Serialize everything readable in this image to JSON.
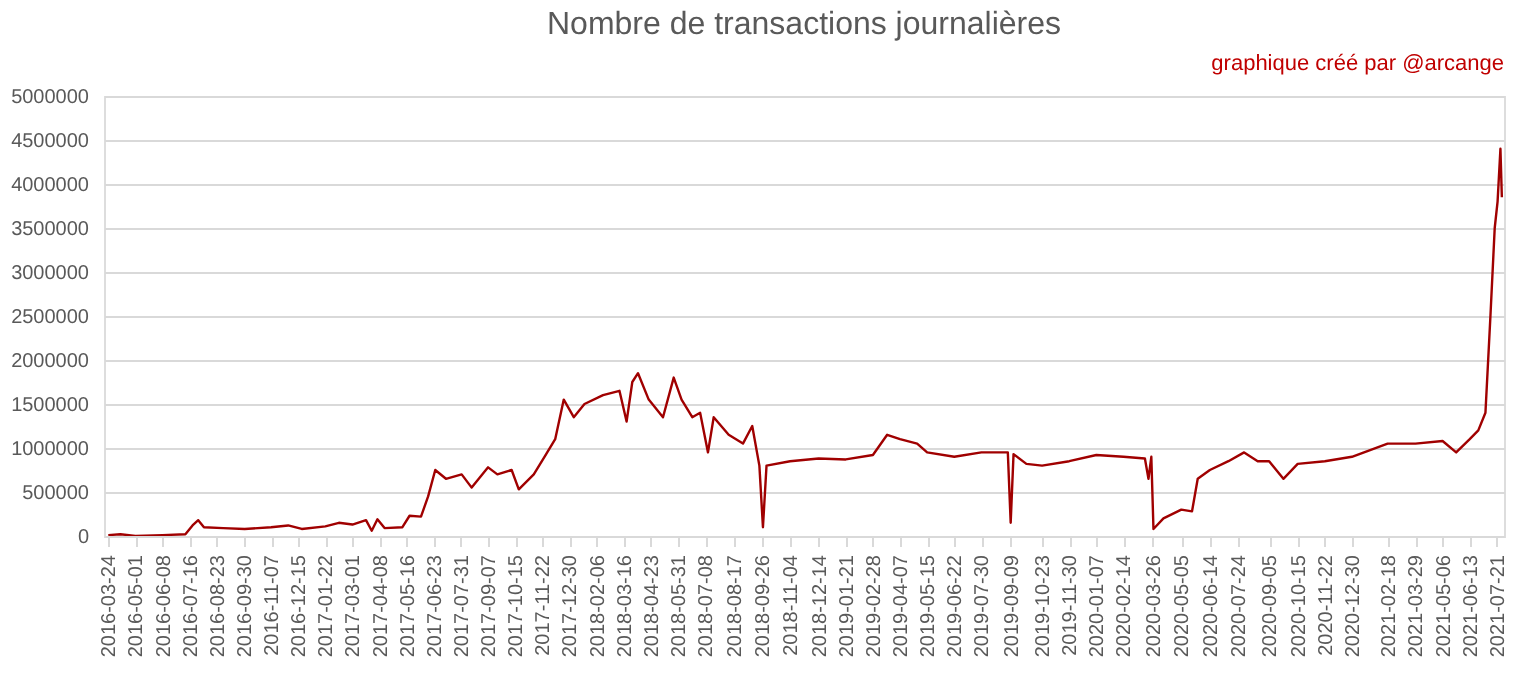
{
  "chart_data": {
    "type": "line",
    "title": "Nombre de transactions journalières",
    "annotations": [
      "graphique créé par @arcange"
    ],
    "x": [
      "2016-03-24",
      "2016-04-10",
      "2016-05-01",
      "2016-06-08",
      "2016-07-10",
      "2016-07-20",
      "2016-07-28",
      "2016-08-05",
      "2016-09-01",
      "2016-10-01",
      "2016-11-07",
      "2016-12-01",
      "2016-12-20",
      "2017-01-22",
      "2017-02-10",
      "2017-03-01",
      "2017-03-20",
      "2017-03-28",
      "2017-04-05",
      "2017-04-15",
      "2017-05-10",
      "2017-05-20",
      "2017-06-05",
      "2017-06-15",
      "2017-06-25",
      "2017-07-10",
      "2017-08-01",
      "2017-08-15",
      "2017-09-07",
      "2017-09-20",
      "2017-10-10",
      "2017-10-20",
      "2017-11-10",
      "2017-11-25",
      "2017-12-10",
      "2017-12-22",
      "2018-01-05",
      "2018-01-20",
      "2018-02-15",
      "2018-03-10",
      "2018-03-20",
      "2018-03-28",
      "2018-04-05",
      "2018-04-20",
      "2018-05-10",
      "2018-05-25",
      "2018-06-05",
      "2018-06-20",
      "2018-07-01",
      "2018-07-12",
      "2018-07-20",
      "2018-08-10",
      "2018-08-30",
      "2018-09-12",
      "2018-09-22",
      "2018-09-27",
      "2018-10-02",
      "2018-11-04",
      "2018-12-14",
      "2019-01-21",
      "2019-02-28",
      "2019-03-20",
      "2019-04-07",
      "2019-05-01",
      "2019-05-15",
      "2019-06-22",
      "2019-07-30",
      "2019-09-05",
      "2019-09-09",
      "2019-09-13",
      "2019-10-01",
      "2019-10-23",
      "2019-11-30",
      "2020-01-07",
      "2020-02-14",
      "2020-03-15",
      "2020-03-20",
      "2020-03-24",
      "2020-03-27",
      "2020-04-10",
      "2020-05-05",
      "2020-05-20",
      "2020-05-28",
      "2020-06-14",
      "2020-07-10",
      "2020-08-01",
      "2020-08-20",
      "2020-09-05",
      "2020-09-25",
      "2020-10-15",
      "2020-11-22",
      "2020-12-30",
      "2021-02-18",
      "2021-03-29",
      "2021-05-06",
      "2021-05-25",
      "2021-06-13",
      "2021-06-25",
      "2021-07-05",
      "2021-07-12",
      "2021-07-18",
      "2021-07-22",
      "2021-07-26",
      "2021-07-28"
    ],
    "series": [
      {
        "color": "#a00000",
        "values": [
          10000,
          20000,
          0,
          10000,
          20000,
          120000,
          180000,
          100000,
          90000,
          80000,
          100000,
          120000,
          80000,
          110000,
          150000,
          130000,
          180000,
          60000,
          190000,
          90000,
          100000,
          230000,
          220000,
          450000,
          750000,
          650000,
          700000,
          550000,
          780000,
          700000,
          750000,
          530000,
          700000,
          900000,
          1100000,
          1550000,
          1350000,
          1500000,
          1600000,
          1650000,
          1300000,
          1750000,
          1850000,
          1550000,
          1350000,
          1800000,
          1550000,
          1350000,
          1400000,
          950000,
          1350000,
          1150000,
          1050000,
          1250000,
          800000,
          100000,
          800000,
          850000,
          880000,
          870000,
          920000,
          1150000,
          1100000,
          1050000,
          950000,
          900000,
          950000,
          950000,
          150000,
          930000,
          820000,
          800000,
          850000,
          920000,
          900000,
          880000,
          650000,
          900000,
          80000,
          200000,
          300000,
          280000,
          650000,
          750000,
          850000,
          950000,
          850000,
          850000,
          650000,
          820000,
          850000,
          900000,
          1050000,
          1050000,
          1080000,
          950000,
          1100000,
          1200000,
          1400000,
          2500000,
          3500000,
          3800000,
          4400000,
          3850000
        ]
      }
    ],
    "xlim": [
      "2016-03-18",
      "2021-07-31"
    ],
    "xticks": [
      "2016-03-24",
      "2016-05-01",
      "2016-06-08",
      "2016-07-16",
      "2016-08-23",
      "2016-09-30",
      "2016-11-07",
      "2016-12-15",
      "2017-01-22",
      "2017-03-01",
      "2017-04-08",
      "2017-05-16",
      "2017-06-23",
      "2017-07-31",
      "2017-09-07",
      "2017-10-15",
      "2017-11-22",
      "2017-12-30",
      "2018-02-06",
      "2018-03-16",
      "2018-04-23",
      "2018-05-31",
      "2018-07-08",
      "2018-08-17",
      "2018-09-26",
      "2018-11-04",
      "2018-12-14",
      "2019-01-21",
      "2019-02-28",
      "2019-04-07",
      "2019-05-15",
      "2019-06-22",
      "2019-07-30",
      "2019-09-09",
      "2019-10-23",
      "2019-11-30",
      "2020-01-07",
      "2020-02-14",
      "2020-03-26",
      "2020-05-05",
      "2020-06-14",
      "2020-07-24",
      "2020-09-05",
      "2020-10-15",
      "2020-11-22",
      "2020-12-30",
      "2021-02-18",
      "2021-03-29",
      "2021-05-06",
      "2021-06-13",
      "2021-07-21"
    ],
    "ylim": [
      0,
      5000000
    ],
    "yticks": [
      0,
      500000,
      1000000,
      1500000,
      2000000,
      2500000,
      3000000,
      3500000,
      4000000,
      4500000,
      5000000
    ],
    "grid": "y",
    "marker": "none",
    "line_style": "solid"
  }
}
